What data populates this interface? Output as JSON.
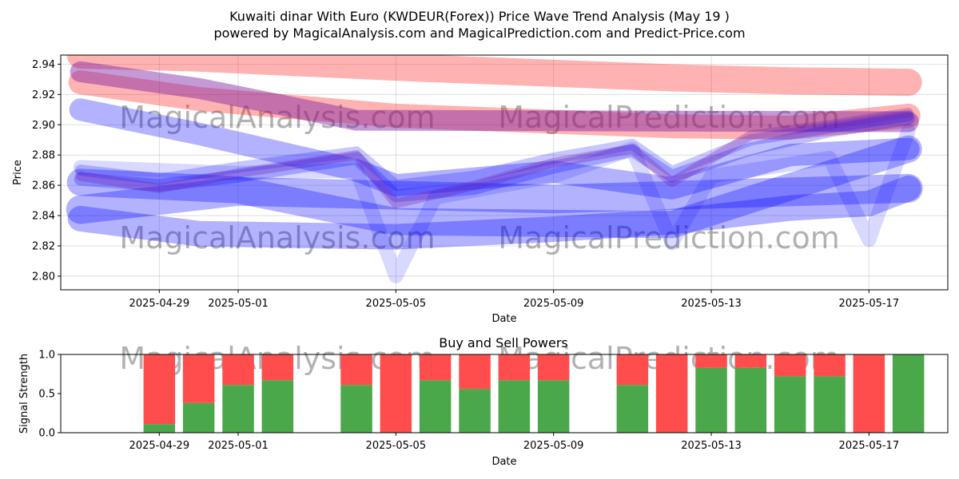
{
  "title_line1": "Kuwaiti dinar With Euro (KWDEUR(Forex)) Price Wave Trend Analysis (May 19 )",
  "title_line2": "powered by MagicalAnalysis.com and MagicalPrediction.com and Predict-Price.com",
  "watermarks": [
    "MagicalAnalysis.com",
    "MagicalPrediction.com"
  ],
  "chart_data": [
    {
      "type": "line",
      "title": "",
      "xlabel": "Date",
      "ylabel": "Price",
      "ylim": [
        2.791,
        2.946
      ],
      "xlim": [
        "2025-04-26T12:00",
        "2025-05-19T00:00"
      ],
      "x_ticks": [
        "2025-04-29",
        "2025-05-01",
        "2025-05-05",
        "2025-05-09",
        "2025-05-13",
        "2025-05-17"
      ],
      "y_ticks": [
        2.8,
        2.82,
        2.84,
        2.86,
        2.88,
        2.9,
        2.92,
        2.94
      ],
      "grid": true,
      "colors": {
        "red_band": "#ff0000",
        "blue_band": "#0000ff",
        "purple_band": "#7a1fa2"
      },
      "series": [
        {
          "color": "red",
          "x": [
            "2025-04-27",
            "2025-04-30",
            "2025-05-05",
            "2025-05-09",
            "2025-05-12",
            "2025-05-15",
            "2025-05-18"
          ],
          "values": [
            2.946,
            2.944,
            2.938,
            2.934,
            2.931,
            2.929,
            2.928
          ]
        },
        {
          "color": "red",
          "x": [
            "2025-04-27",
            "2025-04-30",
            "2025-05-05",
            "2025-05-09",
            "2025-05-12",
            "2025-05-15",
            "2025-05-18"
          ],
          "values": [
            2.928,
            2.917,
            2.906,
            2.902,
            2.899,
            2.898,
            2.906
          ]
        },
        {
          "color": "purple",
          "x": [
            "2025-04-27",
            "2025-04-30",
            "2025-05-04",
            "2025-05-18"
          ],
          "values": [
            2.935,
            2.924,
            2.903,
            2.902
          ]
        },
        {
          "color": "blue",
          "x": [
            "2025-04-27",
            "2025-04-30",
            "2025-05-04",
            "2025-05-05",
            "2025-05-09",
            "2025-05-12",
            "2025-05-15",
            "2025-05-18"
          ],
          "values": [
            2.91,
            2.894,
            2.87,
            2.86,
            2.869,
            2.858,
            2.88,
            2.884
          ]
        },
        {
          "color": "blue",
          "x": [
            "2025-04-27",
            "2025-05-01",
            "2025-05-05",
            "2025-05-12",
            "2025-05-18"
          ],
          "values": [
            2.862,
            2.857,
            2.836,
            2.834,
            2.884
          ]
        },
        {
          "color": "blue",
          "x": [
            "2025-04-27",
            "2025-05-01",
            "2025-05-09",
            "2025-05-18"
          ],
          "values": [
            2.844,
            2.856,
            2.851,
            2.858
          ]
        },
        {
          "color": "blue",
          "x": [
            "2025-04-27",
            "2025-04-30",
            "2025-05-05",
            "2025-05-09",
            "2025-05-12",
            "2025-05-15",
            "2025-05-17",
            "2025-05-18"
          ],
          "values": [
            2.838,
            2.828,
            2.826,
            2.831,
            2.836,
            2.845,
            2.848,
            2.858
          ]
        },
        {
          "color": "blue",
          "x": [
            "2025-04-27",
            "2025-04-29",
            "2025-05-01",
            "2025-05-04",
            "2025-05-05",
            "2025-05-07",
            "2025-05-09",
            "2025-05-11",
            "2025-05-12",
            "2025-05-14",
            "2025-05-16",
            "2025-05-18"
          ],
          "values": [
            2.864,
            2.86,
            2.866,
            2.878,
            2.853,
            2.858,
            2.872,
            2.883,
            2.866,
            2.884,
            2.896,
            2.904
          ]
        },
        {
          "color": "blue",
          "x": [
            "2025-04-27",
            "2025-04-29",
            "2025-05-01",
            "2025-05-04",
            "2025-05-05",
            "2025-05-07",
            "2025-05-09",
            "2025-05-11",
            "2025-05-12",
            "2025-05-14",
            "2025-05-16",
            "2025-05-18"
          ],
          "values": [
            2.87,
            2.864,
            2.872,
            2.882,
            2.86,
            2.866,
            2.878,
            2.887,
            2.869,
            2.89,
            2.898,
            2.906
          ]
        },
        {
          "color": "purple",
          "x": [
            "2025-04-27",
            "2025-04-29",
            "2025-05-01",
            "2025-05-04",
            "2025-05-05",
            "2025-05-07",
            "2025-05-09",
            "2025-05-11",
            "2025-05-12",
            "2025-05-14",
            "2025-05-16",
            "2025-05-18"
          ],
          "values": [
            2.866,
            2.858,
            2.868,
            2.88,
            2.848,
            2.86,
            2.875,
            2.884,
            2.862,
            2.893,
            2.9,
            2.908
          ]
        },
        {
          "color": "blue",
          "x": [
            "2025-04-27",
            "2025-05-01",
            "2025-05-04",
            "2025-05-05",
            "2025-05-06",
            "2025-05-09",
            "2025-05-11",
            "2025-05-12",
            "2025-05-13",
            "2025-05-16",
            "2025-05-17",
            "2025-05-18"
          ],
          "values": [
            2.872,
            2.868,
            2.87,
            2.8,
            2.852,
            2.866,
            2.884,
            2.822,
            2.866,
            2.878,
            2.824,
            2.896
          ]
        }
      ]
    },
    {
      "type": "bar",
      "title": "Buy and Sell Powers",
      "xlabel": "Date",
      "ylabel": "Signal Strength",
      "ylim": [
        0,
        1
      ],
      "y_ticks": [
        0.0,
        0.5,
        1.0
      ],
      "x_ticks": [
        "2025-04-29",
        "2025-05-01",
        "2025-05-05",
        "2025-05-09",
        "2025-05-13",
        "2025-05-17"
      ],
      "colors": {
        "buy": "#4aa84a",
        "sell": "#ff4d4d"
      },
      "dates": [
        "2025-04-29",
        "2025-04-30",
        "2025-05-01",
        "2025-05-02",
        "2025-05-04",
        "2025-05-05",
        "2025-05-06",
        "2025-05-07",
        "2025-05-08",
        "2025-05-09",
        "2025-05-11",
        "2025-05-12",
        "2025-05-13",
        "2025-05-14",
        "2025-05-15",
        "2025-05-16",
        "2025-05-17",
        "2025-05-18"
      ],
      "series": [
        {
          "name": "buy",
          "values": [
            0.11,
            0.38,
            0.61,
            0.67,
            0.61,
            0.0,
            0.67,
            0.56,
            0.67,
            0.67,
            0.61,
            0.0,
            0.83,
            0.83,
            0.72,
            0.72,
            0.0,
            1.0
          ]
        },
        {
          "name": "sell",
          "values": [
            0.89,
            0.62,
            0.39,
            0.33,
            0.39,
            1.0,
            0.33,
            0.44,
            0.33,
            0.33,
            0.39,
            1.0,
            0.17,
            0.17,
            0.28,
            0.28,
            1.0,
            0.0
          ]
        }
      ]
    }
  ]
}
